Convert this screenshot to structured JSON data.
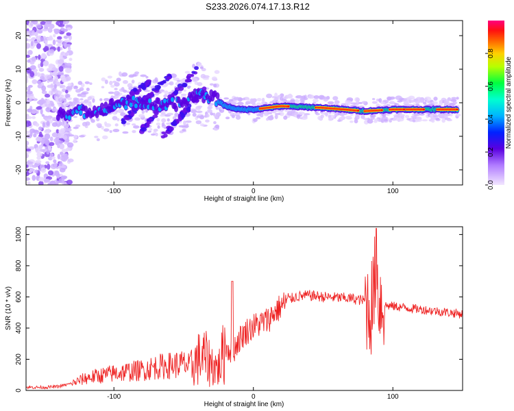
{
  "figure_title": "S233.2026.074.17.13.R12",
  "colors": {
    "snr_line": "#ee2222",
    "axis": "#000000"
  },
  "chart_data": [
    {
      "type": "heatmap",
      "title": "S233.2026.074.17.13.R12",
      "xlabel": "Height of straight line (km)",
      "ylabel": "Frequency (Hz)",
      "xlim": [
        -163,
        150
      ],
      "ylim": [
        -24.5,
        24.5
      ],
      "xticks": [
        -100,
        0,
        100
      ],
      "yticks": [
        -20,
        -10,
        0,
        10,
        20
      ],
      "colorbar": {
        "label": "Normalized spectral amplitude",
        "range": [
          0,
          1
        ],
        "ticks": [
          "0.0",
          "0.2",
          "0.4",
          "0.6",
          "0.8"
        ]
      },
      "ridge": {
        "description_points_x": [
          -145,
          -130,
          -110,
          -95,
          -80,
          -65,
          -50,
          -40,
          -35,
          -30,
          -20,
          -10,
          0,
          20,
          50,
          80,
          100,
          120,
          147
        ],
        "frequency_hz": [
          -3,
          -3,
          -2,
          0,
          0,
          -1,
          0,
          3,
          2,
          2,
          -1,
          -2,
          -2,
          -1,
          -1.5,
          -2.5,
          -2,
          -2,
          -2
        ]
      }
    },
    {
      "type": "line",
      "title": "",
      "xlabel": "Height of straight line (km)",
      "ylabel": "SNR (10 * v/v)",
      "xlim": [
        -163,
        150
      ],
      "ylim": [
        0,
        1050
      ],
      "xticks": [
        -100,
        0,
        100
      ],
      "yticks": [
        0,
        200,
        400,
        600,
        800,
        1000
      ],
      "series": [
        {
          "name": "SNR",
          "x": [
            -163,
            -150,
            -140,
            -130,
            -120,
            -110,
            -100,
            -90,
            -80,
            -70,
            -60,
            -50,
            -45,
            -40,
            -35,
            -30,
            -25,
            -20,
            -15,
            -10,
            -5,
            0,
            5,
            10,
            15,
            20,
            25,
            30,
            40,
            50,
            60,
            70,
            80,
            84,
            86,
            88,
            90,
            92,
            95,
            100,
            110,
            120,
            130,
            140,
            150
          ],
          "y": [
            20,
            20,
            25,
            45,
            80,
            95,
            110,
            120,
            130,
            150,
            160,
            170,
            150,
            200,
            210,
            170,
            140,
            280,
            250,
            330,
            380,
            410,
            430,
            450,
            500,
            540,
            580,
            600,
            610,
            600,
            595,
            590,
            575,
            520,
            600,
            780,
            600,
            560,
            545,
            540,
            530,
            520,
            510,
            500,
            490
          ]
        }
      ],
      "annotations": [
        {
          "x": -15,
          "y": 700,
          "text": ""
        },
        {
          "x": 87,
          "y": 1040,
          "text": ""
        }
      ]
    }
  ]
}
